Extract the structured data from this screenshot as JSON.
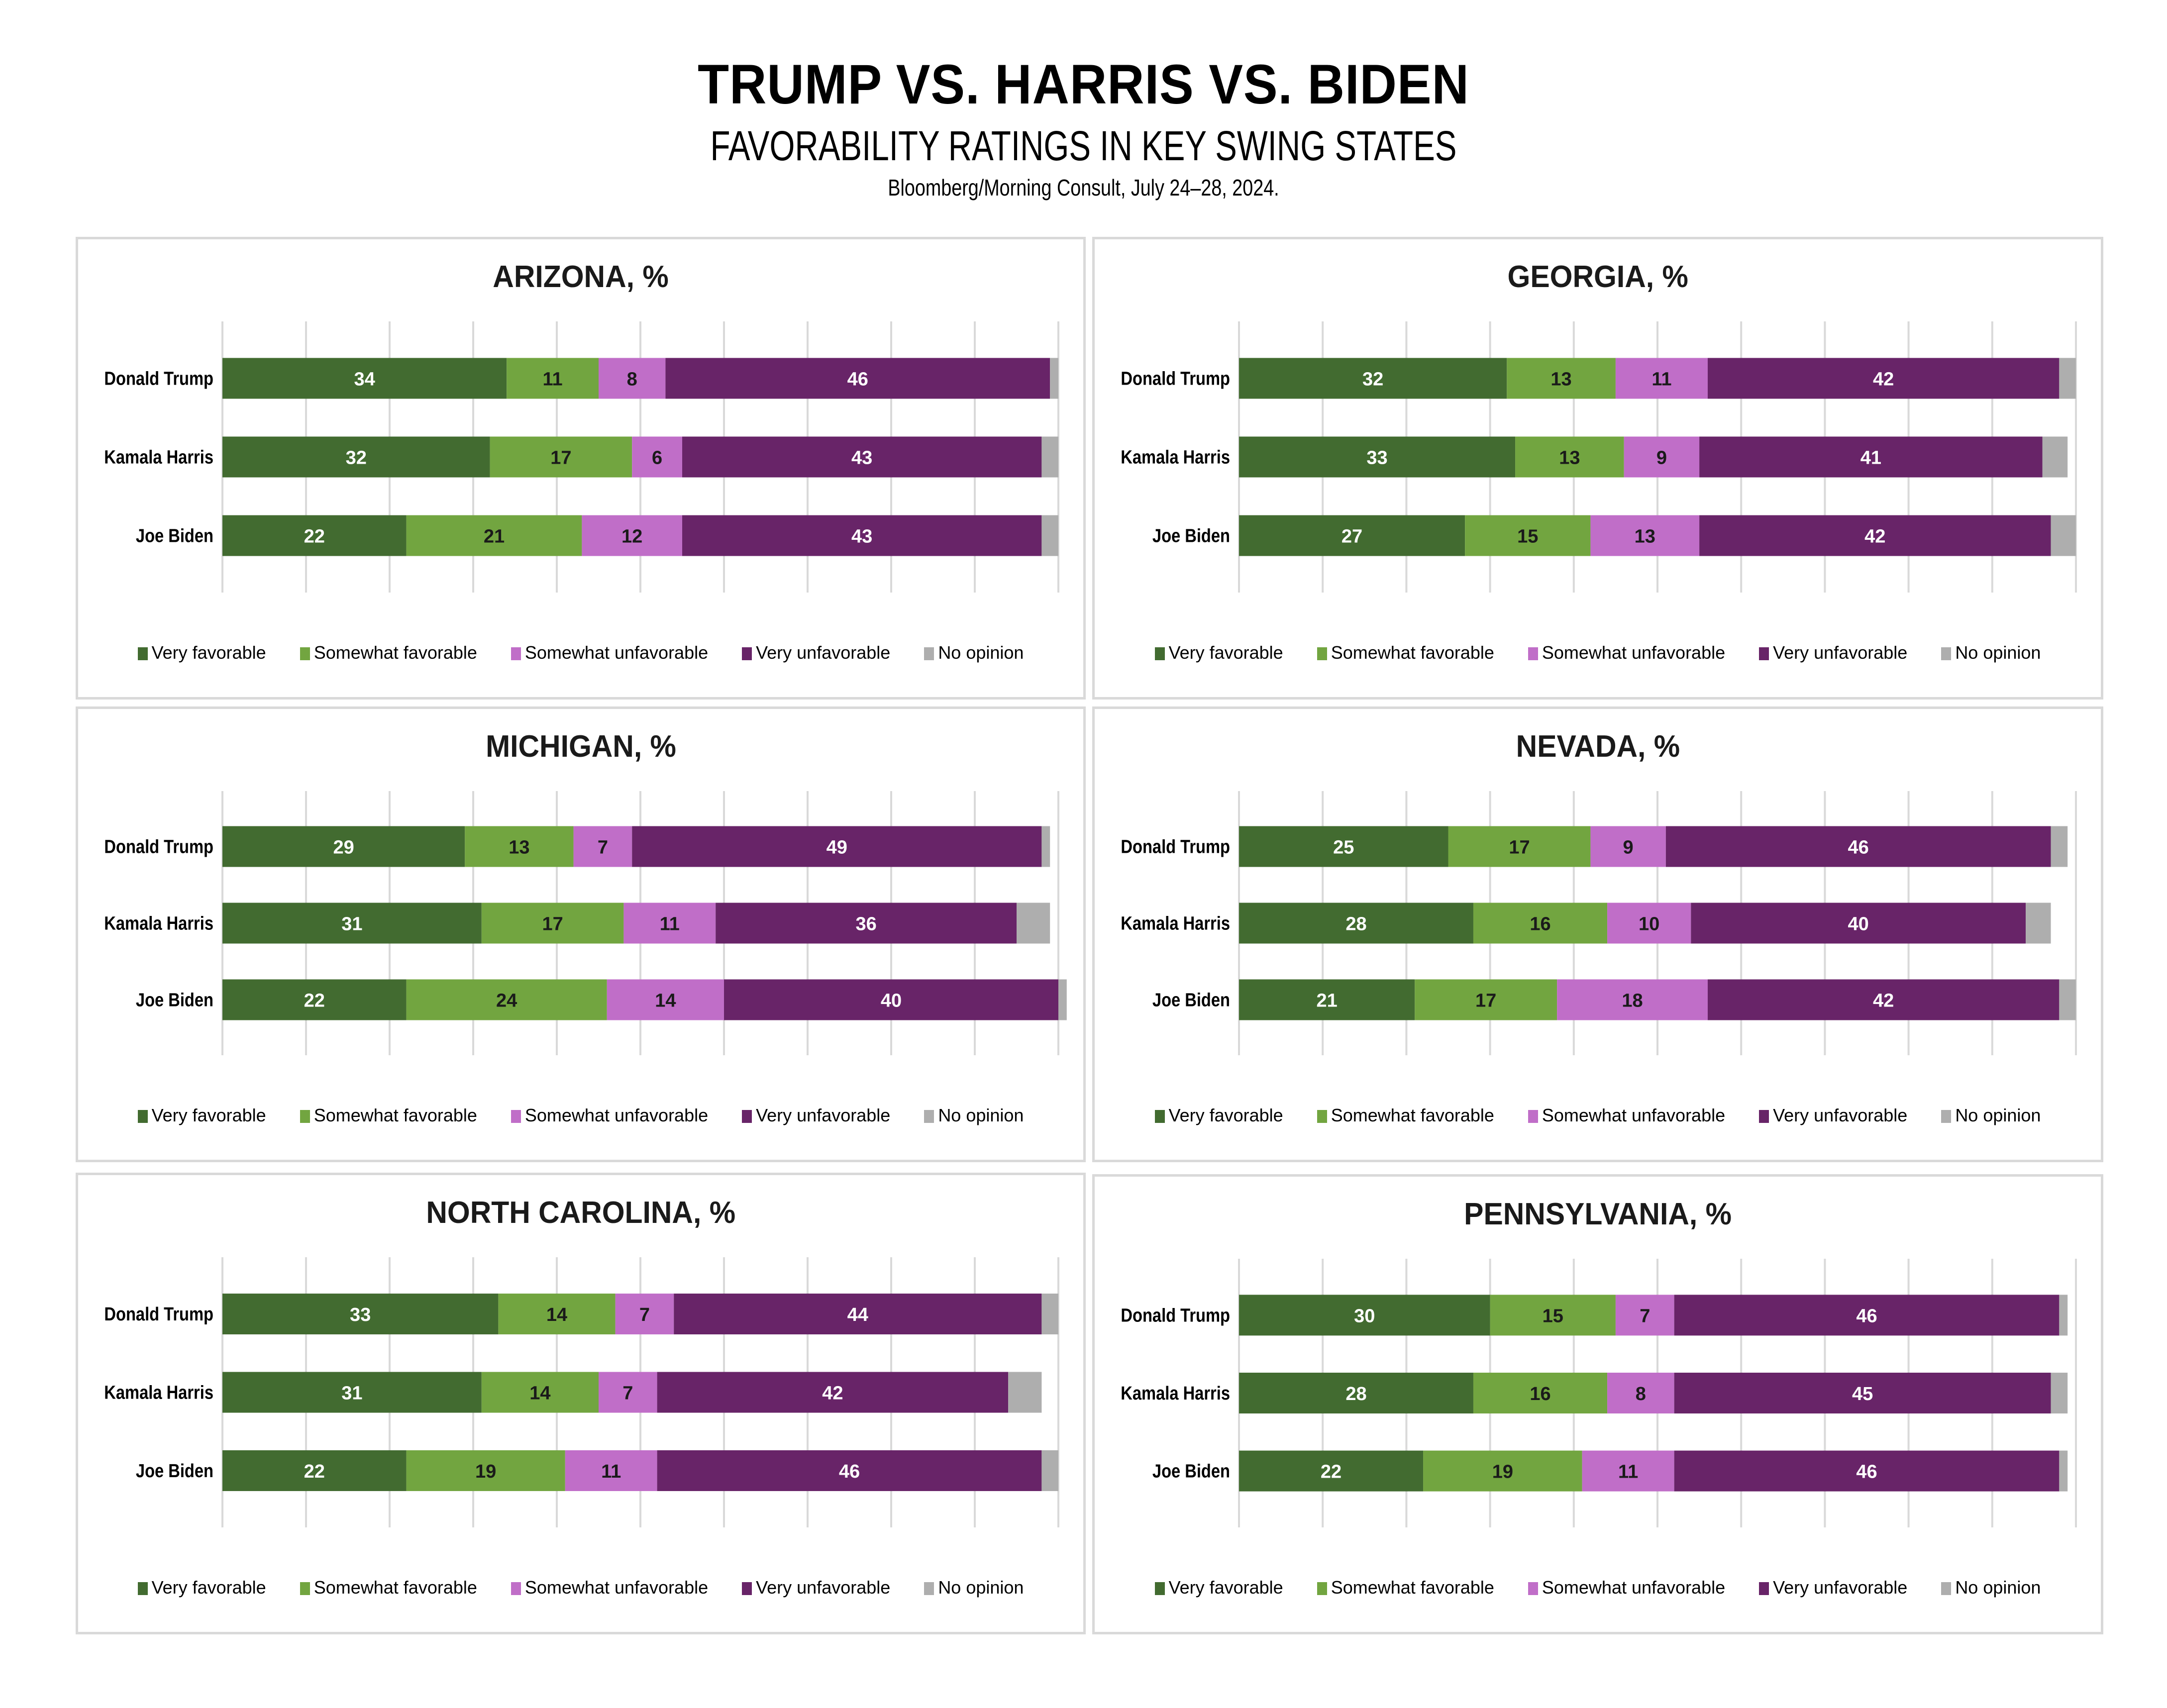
{
  "header": {
    "title": "TRUMP VS. HARRIS VS. BIDEN",
    "subtitle": "FAVORABILITY RATINGS IN KEY SWING STATES",
    "source": "Bloomberg/Morning Consult, July 24–28, 2024."
  },
  "colors": {
    "very_favorable": "#426B30",
    "somewhat_favorable": "#72A540",
    "somewhat_unfavorable": "#C06EC8",
    "very_unfavorable": "#682468",
    "no_opinion": "#AEAEAE",
    "gridline": "#D9D9D9"
  },
  "legend": [
    "Very favorable",
    "Somewhat favorable",
    "Somewhat unfavorable",
    "Very unfavorable",
    "No opinion"
  ],
  "chart_data": [
    {
      "type": "bar",
      "orientation": "horizontal",
      "stacked": true,
      "title": "ARIZONA, %",
      "categories": [
        "Donald Trump",
        "Kamala Harris",
        "Joe Biden"
      ],
      "series": [
        {
          "name": "Very favorable",
          "values": [
            34,
            32,
            22
          ]
        },
        {
          "name": "Somewhat favorable",
          "values": [
            11,
            17,
            21
          ]
        },
        {
          "name": "Somewhat unfavorable",
          "values": [
            8,
            6,
            12
          ]
        },
        {
          "name": "Very unfavorable",
          "values": [
            46,
            43,
            43
          ]
        },
        {
          "name": "No opinion",
          "values": [
            1,
            2,
            2
          ]
        }
      ],
      "xlim": [
        0,
        100
      ],
      "grid": true,
      "grid_step": 10,
      "legend": "bottom"
    },
    {
      "type": "bar",
      "orientation": "horizontal",
      "stacked": true,
      "title": "GEORGIA, %",
      "categories": [
        "Donald Trump",
        "Kamala Harris",
        "Joe Biden"
      ],
      "series": [
        {
          "name": "Very favorable",
          "values": [
            32,
            33,
            27
          ]
        },
        {
          "name": "Somewhat favorable",
          "values": [
            13,
            13,
            15
          ]
        },
        {
          "name": "Somewhat unfavorable",
          "values": [
            11,
            9,
            13
          ]
        },
        {
          "name": "Very unfavorable",
          "values": [
            42,
            41,
            42
          ]
        },
        {
          "name": "No opinion",
          "values": [
            2,
            3,
            3
          ]
        }
      ],
      "xlim": [
        0,
        100
      ],
      "grid": true,
      "grid_step": 10,
      "legend": "bottom"
    },
    {
      "type": "bar",
      "orientation": "horizontal",
      "stacked": true,
      "title": "MICHIGAN, %",
      "categories": [
        "Donald Trump",
        "Kamala Harris",
        "Joe Biden"
      ],
      "series": [
        {
          "name": "Very favorable",
          "values": [
            29,
            31,
            22
          ]
        },
        {
          "name": "Somewhat favorable",
          "values": [
            13,
            17,
            24
          ]
        },
        {
          "name": "Somewhat unfavorable",
          "values": [
            7,
            11,
            14
          ]
        },
        {
          "name": "Very unfavorable",
          "values": [
            49,
            36,
            40
          ]
        },
        {
          "name": "No opinion",
          "values": [
            1,
            4,
            1
          ]
        }
      ],
      "xlim": [
        0,
        100
      ],
      "grid": true,
      "grid_step": 10,
      "legend": "bottom"
    },
    {
      "type": "bar",
      "orientation": "horizontal",
      "stacked": true,
      "title": "NEVADA, %",
      "categories": [
        "Donald Trump",
        "Kamala Harris",
        "Joe Biden"
      ],
      "series": [
        {
          "name": "Very favorable",
          "values": [
            25,
            28,
            21
          ]
        },
        {
          "name": "Somewhat favorable",
          "values": [
            17,
            16,
            17
          ]
        },
        {
          "name": "Somewhat unfavorable",
          "values": [
            9,
            10,
            18
          ]
        },
        {
          "name": "Very unfavorable",
          "values": [
            46,
            40,
            42
          ]
        },
        {
          "name": "No opinion",
          "values": [
            2,
            3,
            2
          ]
        }
      ],
      "xlim": [
        0,
        100
      ],
      "grid": true,
      "grid_step": 10,
      "legend": "bottom"
    },
    {
      "type": "bar",
      "orientation": "horizontal",
      "stacked": true,
      "title": "NORTH CAROLINA, %",
      "categories": [
        "Donald Trump",
        "Kamala Harris",
        "Joe Biden"
      ],
      "series": [
        {
          "name": "Very favorable",
          "values": [
            33,
            31,
            22
          ]
        },
        {
          "name": "Somewhat favorable",
          "values": [
            14,
            14,
            19
          ]
        },
        {
          "name": "Somewhat unfavorable",
          "values": [
            7,
            7,
            11
          ]
        },
        {
          "name": "Very unfavorable",
          "values": [
            44,
            42,
            46
          ]
        },
        {
          "name": "No opinion",
          "values": [
            2,
            4,
            2
          ]
        }
      ],
      "xlim": [
        0,
        100
      ],
      "grid": true,
      "grid_step": 10,
      "legend": "bottom"
    },
    {
      "type": "bar",
      "orientation": "horizontal",
      "stacked": true,
      "title": "PENNSYLVANIA, %",
      "categories": [
        "Donald Trump",
        "Kamala Harris",
        "Joe Biden"
      ],
      "series": [
        {
          "name": "Very favorable",
          "values": [
            30,
            28,
            22
          ]
        },
        {
          "name": "Somewhat favorable",
          "values": [
            15,
            16,
            19
          ]
        },
        {
          "name": "Somewhat unfavorable",
          "values": [
            7,
            8,
            11
          ]
        },
        {
          "name": "Very unfavorable",
          "values": [
            46,
            45,
            46
          ]
        },
        {
          "name": "No opinion",
          "values": [
            1,
            2,
            1
          ]
        }
      ],
      "xlim": [
        0,
        100
      ],
      "grid": true,
      "grid_step": 10,
      "legend": "bottom"
    }
  ]
}
